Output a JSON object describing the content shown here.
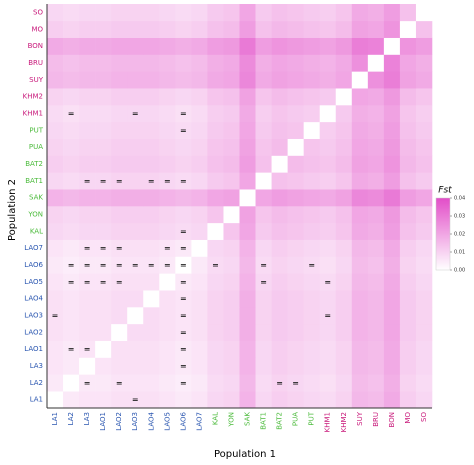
{
  "chart_data": {
    "type": "heatmap",
    "x_label": "Population 1",
    "y_label": "Population 2",
    "categories": [
      "LA1",
      "LA2",
      "LA3",
      "LAO1",
      "LAO2",
      "LAO3",
      "LAO4",
      "LAO5",
      "LAO6",
      "LAO7",
      "KAL",
      "YON",
      "SAK",
      "BAT1",
      "BAT2",
      "PUA",
      "PUT",
      "KHM1",
      "KHM2",
      "SUY",
      "BRU",
      "BON",
      "MO",
      "SO"
    ],
    "label_colors": [
      "#2a56b0",
      "#2a56b0",
      "#2a56b0",
      "#2a56b0",
      "#2a56b0",
      "#2a56b0",
      "#2a56b0",
      "#2a56b0",
      "#2a56b0",
      "#2a56b0",
      "#4cbb3c",
      "#4cbb3c",
      "#4cbb3c",
      "#4cbb3c",
      "#4cbb3c",
      "#4cbb3c",
      "#4cbb3c",
      "#c8187a",
      "#c8187a",
      "#c8187a",
      "#c8187a",
      "#c8187a",
      "#c8187a",
      "#c8187a"
    ],
    "colorbar_title": "Fst",
    "colormap": [
      "#ffffff",
      "#e24dc8"
    ],
    "clim": [
      0,
      0.04
    ],
    "cticks": [
      {
        "value": 0,
        "label": "0.00"
      },
      {
        "value": 0.01,
        "label": "0.01"
      },
      {
        "value": 0.02,
        "label": "0.02"
      },
      {
        "value": 0.03,
        "label": "0.03"
      },
      {
        "value": 0.04,
        "label": "0.04"
      }
    ],
    "equal_symbol": "=",
    "equal_cells": [
      [
        0,
        5
      ],
      [
        1,
        2
      ],
      [
        1,
        4
      ],
      [
        1,
        8
      ],
      [
        1,
        14
      ],
      [
        1,
        15
      ],
      [
        2,
        8
      ],
      [
        3,
        1
      ],
      [
        3,
        2
      ],
      [
        3,
        8
      ],
      [
        4,
        8
      ],
      [
        5,
        0
      ],
      [
        5,
        8
      ],
      [
        5,
        17
      ],
      [
        6,
        8
      ],
      [
        7,
        1
      ],
      [
        7,
        2
      ],
      [
        7,
        3
      ],
      [
        7,
        4
      ],
      [
        7,
        8
      ],
      [
        7,
        13
      ],
      [
        7,
        17
      ],
      [
        8,
        1
      ],
      [
        8,
        2
      ],
      [
        8,
        3
      ],
      [
        8,
        4
      ],
      [
        8,
        5
      ],
      [
        8,
        6
      ],
      [
        8,
        7
      ],
      [
        8,
        8
      ],
      [
        8,
        10
      ],
      [
        8,
        13
      ],
      [
        8,
        16
      ],
      [
        9,
        2
      ],
      [
        9,
        3
      ],
      [
        9,
        4
      ],
      [
        9,
        7
      ],
      [
        9,
        8
      ],
      [
        10,
        8
      ],
      [
        13,
        2
      ],
      [
        13,
        3
      ],
      [
        13,
        4
      ],
      [
        13,
        6
      ],
      [
        13,
        7
      ],
      [
        13,
        8
      ],
      [
        16,
        8
      ],
      [
        17,
        1
      ],
      [
        17,
        5
      ],
      [
        17,
        8
      ]
    ],
    "values": [
      [
        0,
        0.005,
        0.006,
        0.006,
        0.007,
        0.007,
        0.007,
        0.006,
        0.005,
        0.006,
        0.009,
        0.01,
        0.017,
        0.009,
        0.011,
        0.01,
        0.009,
        0.008,
        0.01,
        0.016,
        0.015,
        0.019,
        0.011,
        0.009
      ],
      [
        0.005,
        0,
        0.005,
        0.005,
        0.006,
        0.006,
        0.006,
        0.005,
        0.004,
        0.005,
        0.008,
        0.009,
        0.016,
        0.008,
        0.01,
        0.009,
        0.008,
        0.007,
        0.009,
        0.015,
        0.014,
        0.018,
        0.01,
        0.008
      ],
      [
        0.006,
        0.005,
        0,
        0.006,
        0.007,
        0.007,
        0.007,
        0.006,
        0.005,
        0.006,
        0.009,
        0.01,
        0.017,
        0.009,
        0.011,
        0.01,
        0.009,
        0.008,
        0.01,
        0.016,
        0.015,
        0.019,
        0.011,
        0.009
      ],
      [
        0.006,
        0.005,
        0.006,
        0,
        0.007,
        0.007,
        0.007,
        0.006,
        0.005,
        0.006,
        0.009,
        0.01,
        0.017,
        0.009,
        0.011,
        0.01,
        0.009,
        0.008,
        0.01,
        0.016,
        0.015,
        0.019,
        0.011,
        0.009
      ],
      [
        0.007,
        0.006,
        0.007,
        0.007,
        0,
        0.008,
        0.008,
        0.007,
        0.006,
        0.007,
        0.01,
        0.011,
        0.018,
        0.01,
        0.012,
        0.011,
        0.01,
        0.009,
        0.011,
        0.017,
        0.016,
        0.02,
        0.012,
        0.01
      ],
      [
        0.007,
        0.006,
        0.007,
        0.007,
        0.008,
        0,
        0.008,
        0.007,
        0.006,
        0.007,
        0.01,
        0.011,
        0.018,
        0.01,
        0.012,
        0.011,
        0.01,
        0.009,
        0.011,
        0.017,
        0.016,
        0.02,
        0.012,
        0.01
      ],
      [
        0.007,
        0.006,
        0.007,
        0.007,
        0.008,
        0.008,
        0,
        0.007,
        0.006,
        0.007,
        0.01,
        0.011,
        0.018,
        0.01,
        0.012,
        0.011,
        0.01,
        0.009,
        0.011,
        0.017,
        0.016,
        0.02,
        0.012,
        0.01
      ],
      [
        0.006,
        0.005,
        0.006,
        0.006,
        0.007,
        0.007,
        0.007,
        0,
        0.005,
        0.006,
        0.009,
        0.01,
        0.017,
        0.009,
        0.011,
        0.01,
        0.009,
        0.008,
        0.01,
        0.016,
        0.015,
        0.019,
        0.011,
        0.009
      ],
      [
        0.005,
        0.004,
        0.005,
        0.005,
        0.006,
        0.006,
        0.006,
        0.005,
        0,
        0.005,
        0.008,
        0.009,
        0.016,
        0.008,
        0.01,
        0.009,
        0.008,
        0.007,
        0.009,
        0.015,
        0.014,
        0.018,
        0.01,
        0.008
      ],
      [
        0.006,
        0.005,
        0.006,
        0.006,
        0.007,
        0.007,
        0.007,
        0.006,
        0.005,
        0,
        0.009,
        0.01,
        0.017,
        0.009,
        0.011,
        0.01,
        0.009,
        0.008,
        0.01,
        0.016,
        0.015,
        0.019,
        0.011,
        0.009
      ],
      [
        0.009,
        0.008,
        0.009,
        0.009,
        0.01,
        0.01,
        0.01,
        0.009,
        0.008,
        0.009,
        0,
        0.013,
        0.02,
        0.012,
        0.014,
        0.013,
        0.012,
        0.011,
        0.013,
        0.019,
        0.018,
        0.022,
        0.014,
        0.012
      ],
      [
        0.01,
        0.009,
        0.01,
        0.01,
        0.011,
        0.011,
        0.011,
        0.01,
        0.009,
        0.01,
        0.013,
        0,
        0.021,
        0.013,
        0.015,
        0.014,
        0.013,
        0.012,
        0.014,
        0.02,
        0.019,
        0.023,
        0.015,
        0.013
      ],
      [
        0.017,
        0.016,
        0.017,
        0.017,
        0.018,
        0.018,
        0.018,
        0.017,
        0.016,
        0.017,
        0.02,
        0.021,
        0,
        0.02,
        0.022,
        0.021,
        0.02,
        0.019,
        0.021,
        0.027,
        0.026,
        0.03,
        0.022,
        0.02
      ],
      [
        0.009,
        0.008,
        0.009,
        0.009,
        0.01,
        0.01,
        0.01,
        0.009,
        0.008,
        0.009,
        0.012,
        0.013,
        0.02,
        0,
        0.014,
        0.013,
        0.012,
        0.011,
        0.013,
        0.019,
        0.018,
        0.022,
        0.014,
        0.012
      ],
      [
        0.011,
        0.01,
        0.011,
        0.011,
        0.012,
        0.012,
        0.012,
        0.011,
        0.01,
        0.011,
        0.014,
        0.015,
        0.022,
        0.014,
        0,
        0.015,
        0.014,
        0.013,
        0.015,
        0.021,
        0.02,
        0.024,
        0.016,
        0.014
      ],
      [
        0.01,
        0.009,
        0.01,
        0.01,
        0.011,
        0.011,
        0.011,
        0.01,
        0.009,
        0.01,
        0.013,
        0.014,
        0.021,
        0.013,
        0.015,
        0,
        0.013,
        0.012,
        0.014,
        0.02,
        0.019,
        0.023,
        0.015,
        0.013
      ],
      [
        0.009,
        0.008,
        0.009,
        0.009,
        0.01,
        0.01,
        0.01,
        0.009,
        0.008,
        0.009,
        0.012,
        0.013,
        0.02,
        0.012,
        0.014,
        0.013,
        0,
        0.011,
        0.013,
        0.019,
        0.018,
        0.022,
        0.014,
        0.012
      ],
      [
        0.008,
        0.007,
        0.008,
        0.008,
        0.009,
        0.009,
        0.009,
        0.008,
        0.007,
        0.008,
        0.011,
        0.012,
        0.019,
        0.011,
        0.013,
        0.012,
        0.011,
        0,
        0.012,
        0.018,
        0.017,
        0.021,
        0.013,
        0.011
      ],
      [
        0.01,
        0.009,
        0.01,
        0.01,
        0.011,
        0.011,
        0.011,
        0.01,
        0.009,
        0.01,
        0.013,
        0.014,
        0.021,
        0.013,
        0.015,
        0.014,
        0.013,
        0.012,
        0,
        0.02,
        0.019,
        0.023,
        0.015,
        0.013
      ],
      [
        0.016,
        0.015,
        0.016,
        0.016,
        0.017,
        0.017,
        0.017,
        0.016,
        0.015,
        0.016,
        0.019,
        0.02,
        0.027,
        0.019,
        0.021,
        0.02,
        0.019,
        0.018,
        0.02,
        0,
        0.025,
        0.029,
        0.021,
        0.019
      ],
      [
        0.015,
        0.014,
        0.015,
        0.015,
        0.016,
        0.016,
        0.016,
        0.015,
        0.014,
        0.015,
        0.018,
        0.019,
        0.026,
        0.018,
        0.02,
        0.019,
        0.018,
        0.017,
        0.019,
        0.025,
        0,
        0.028,
        0.02,
        0.018
      ],
      [
        0.019,
        0.018,
        0.019,
        0.019,
        0.02,
        0.02,
        0.02,
        0.019,
        0.018,
        0.019,
        0.022,
        0.023,
        0.03,
        0.022,
        0.024,
        0.023,
        0.022,
        0.021,
        0.023,
        0.029,
        0.028,
        0,
        0.024,
        0.022
      ],
      [
        0.011,
        0.01,
        0.011,
        0.011,
        0.012,
        0.012,
        0.012,
        0.011,
        0.01,
        0.011,
        0.014,
        0.015,
        0.022,
        0.014,
        0.016,
        0.015,
        0.014,
        0.013,
        0.015,
        0.021,
        0.02,
        0.024,
        0,
        0.014
      ],
      [
        0.009,
        0.008,
        0.009,
        0.009,
        0.01,
        0.01,
        0.01,
        0.009,
        0.008,
        0.009,
        0.012,
        0.013,
        0.02,
        0.012,
        0.014,
        0.013,
        0.012,
        0.011,
        0.013,
        0.019,
        0.018,
        0.022,
        0.014,
        0
      ]
    ]
  }
}
